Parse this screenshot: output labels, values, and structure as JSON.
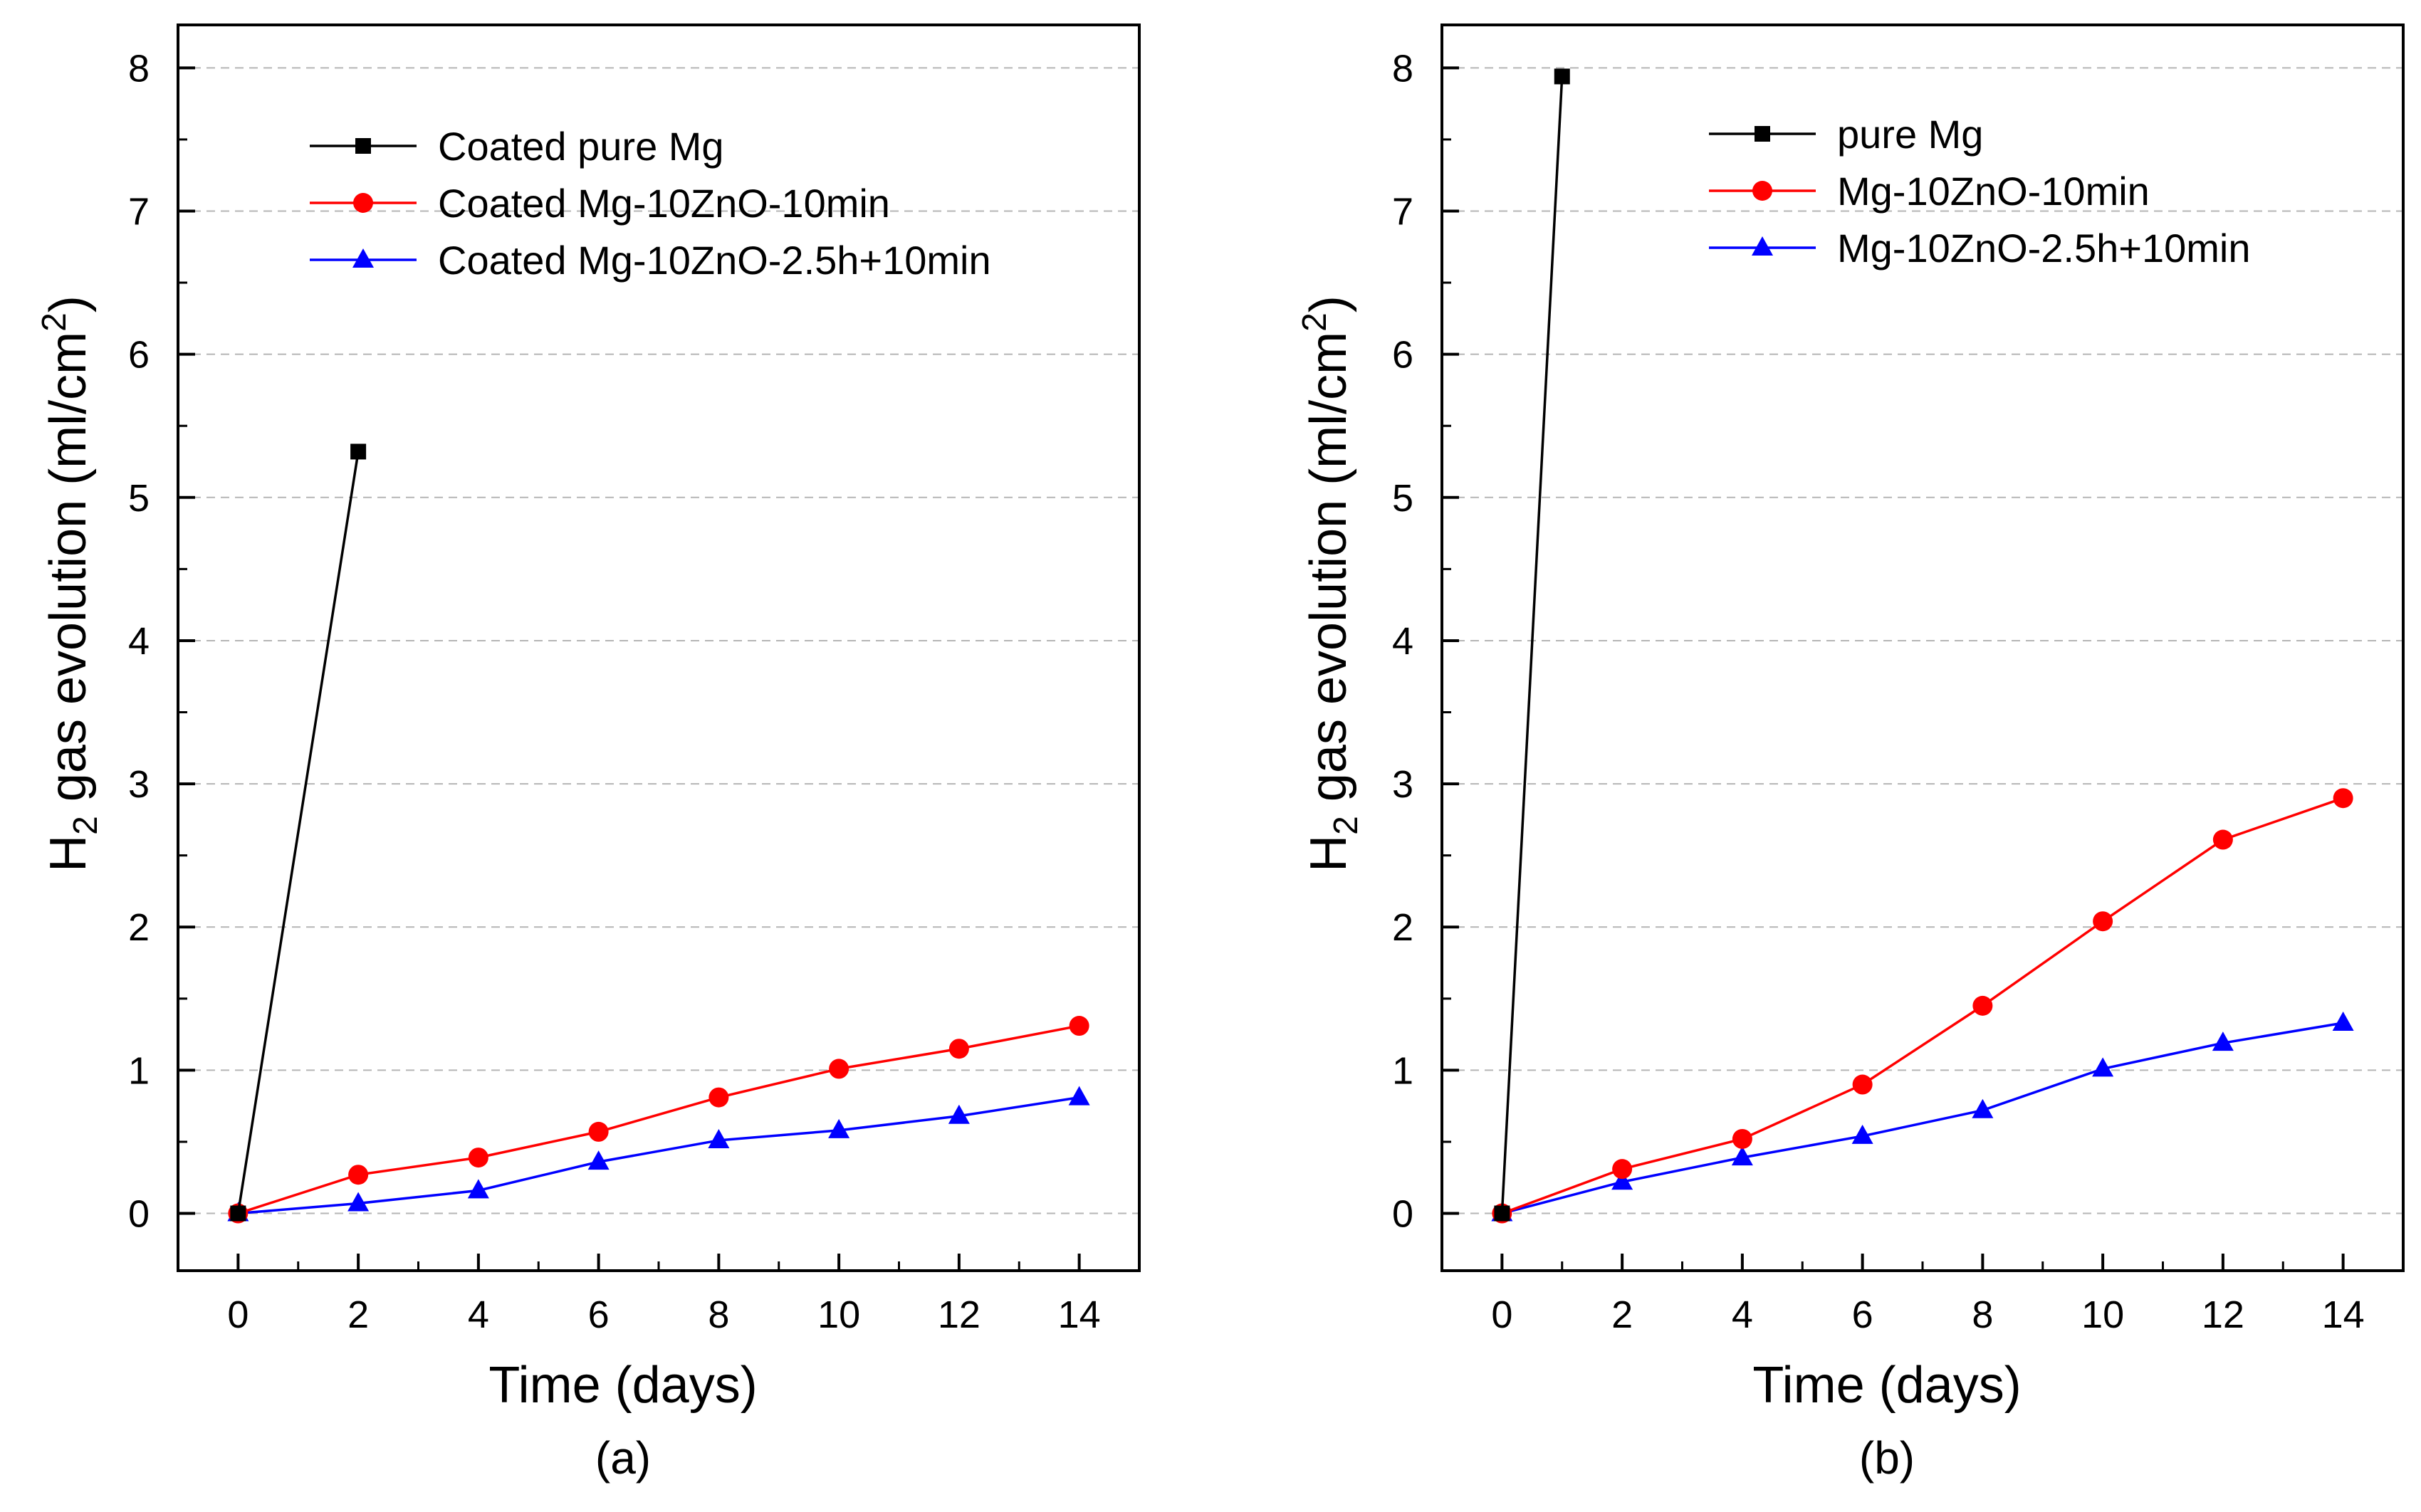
{
  "chart_data": [
    {
      "type": "line",
      "caption": "(a)",
      "xlabel": "Time (days)",
      "ylabel": {
        "main": "H",
        "sub": "2",
        "rest": " gas evolution (ml/cm",
        "sup": "2",
        "end": ")"
      },
      "xlim": [
        -1,
        15
      ],
      "ylim": [
        -0.4,
        8.3
      ],
      "xticks": [
        0,
        2,
        4,
        6,
        8,
        10,
        12,
        14
      ],
      "yticks": [
        0,
        1,
        2,
        3,
        4,
        5,
        6,
        7,
        8
      ],
      "xtick_labels": [
        "0",
        "2",
        "4",
        "6",
        "8",
        "10",
        "12",
        "14"
      ],
      "ytick_labels": [
        "0",
        "1",
        "2",
        "3",
        "4",
        "5",
        "6",
        "7",
        "8"
      ],
      "grid": "horizontal dashed",
      "legend_position": "top-left",
      "series": [
        {
          "name": "Coated pure Mg",
          "color": "#000000",
          "marker": "square",
          "x": [
            0,
            2
          ],
          "y": [
            0.0,
            5.32
          ]
        },
        {
          "name": "Coated Mg-10ZnO-10min",
          "color": "#ff0000",
          "marker": "circle",
          "x": [
            0,
            2,
            4,
            6,
            8,
            10,
            12,
            14
          ],
          "y": [
            0.0,
            0.27,
            0.39,
            0.57,
            0.81,
            1.01,
            1.15,
            1.31
          ]
        },
        {
          "name": "Coated Mg-10ZnO-2.5h+10min",
          "color": "#0000ff",
          "marker": "triangle",
          "x": [
            0,
            2,
            4,
            6,
            8,
            10,
            12,
            14
          ],
          "y": [
            0.0,
            0.07,
            0.16,
            0.36,
            0.51,
            0.58,
            0.68,
            0.81
          ]
        }
      ]
    },
    {
      "type": "line",
      "caption": "(b)",
      "xlabel": "Time (days)",
      "ylabel": {
        "main": "H",
        "sub": "2",
        "rest": " gas evolution (ml/cm",
        "sup": "2",
        "end": ")"
      },
      "xlim": [
        -1,
        15
      ],
      "ylim": [
        -0.4,
        8.3
      ],
      "xticks": [
        0,
        2,
        4,
        6,
        8,
        10,
        12,
        14
      ],
      "yticks": [
        0,
        1,
        2,
        3,
        4,
        5,
        6,
        7,
        8
      ],
      "xtick_labels": [
        "0",
        "2",
        "4",
        "6",
        "8",
        "10",
        "12",
        "14"
      ],
      "ytick_labels": [
        "0",
        "1",
        "2",
        "3",
        "4",
        "5",
        "6",
        "7",
        "8"
      ],
      "grid": "horizontal dashed",
      "legend_position": "top-right",
      "series": [
        {
          "name": "pure Mg",
          "color": "#000000",
          "marker": "square",
          "x": [
            0,
            1
          ],
          "y": [
            0.0,
            7.94
          ]
        },
        {
          "name": "Mg-10ZnO-10min",
          "color": "#ff0000",
          "marker": "circle",
          "x": [
            0,
            2,
            4,
            6,
            8,
            10,
            12,
            14
          ],
          "y": [
            0.0,
            0.31,
            0.52,
            0.9,
            1.45,
            2.04,
            2.61,
            2.9
          ]
        },
        {
          "name": "Mg-10ZnO-2.5h+10min",
          "color": "#0000ff",
          "marker": "triangle",
          "x": [
            0,
            2,
            4,
            6,
            8,
            10,
            12,
            14
          ],
          "y": [
            0.0,
            0.22,
            0.39,
            0.54,
            0.72,
            1.01,
            1.19,
            1.33
          ]
        }
      ]
    }
  ]
}
